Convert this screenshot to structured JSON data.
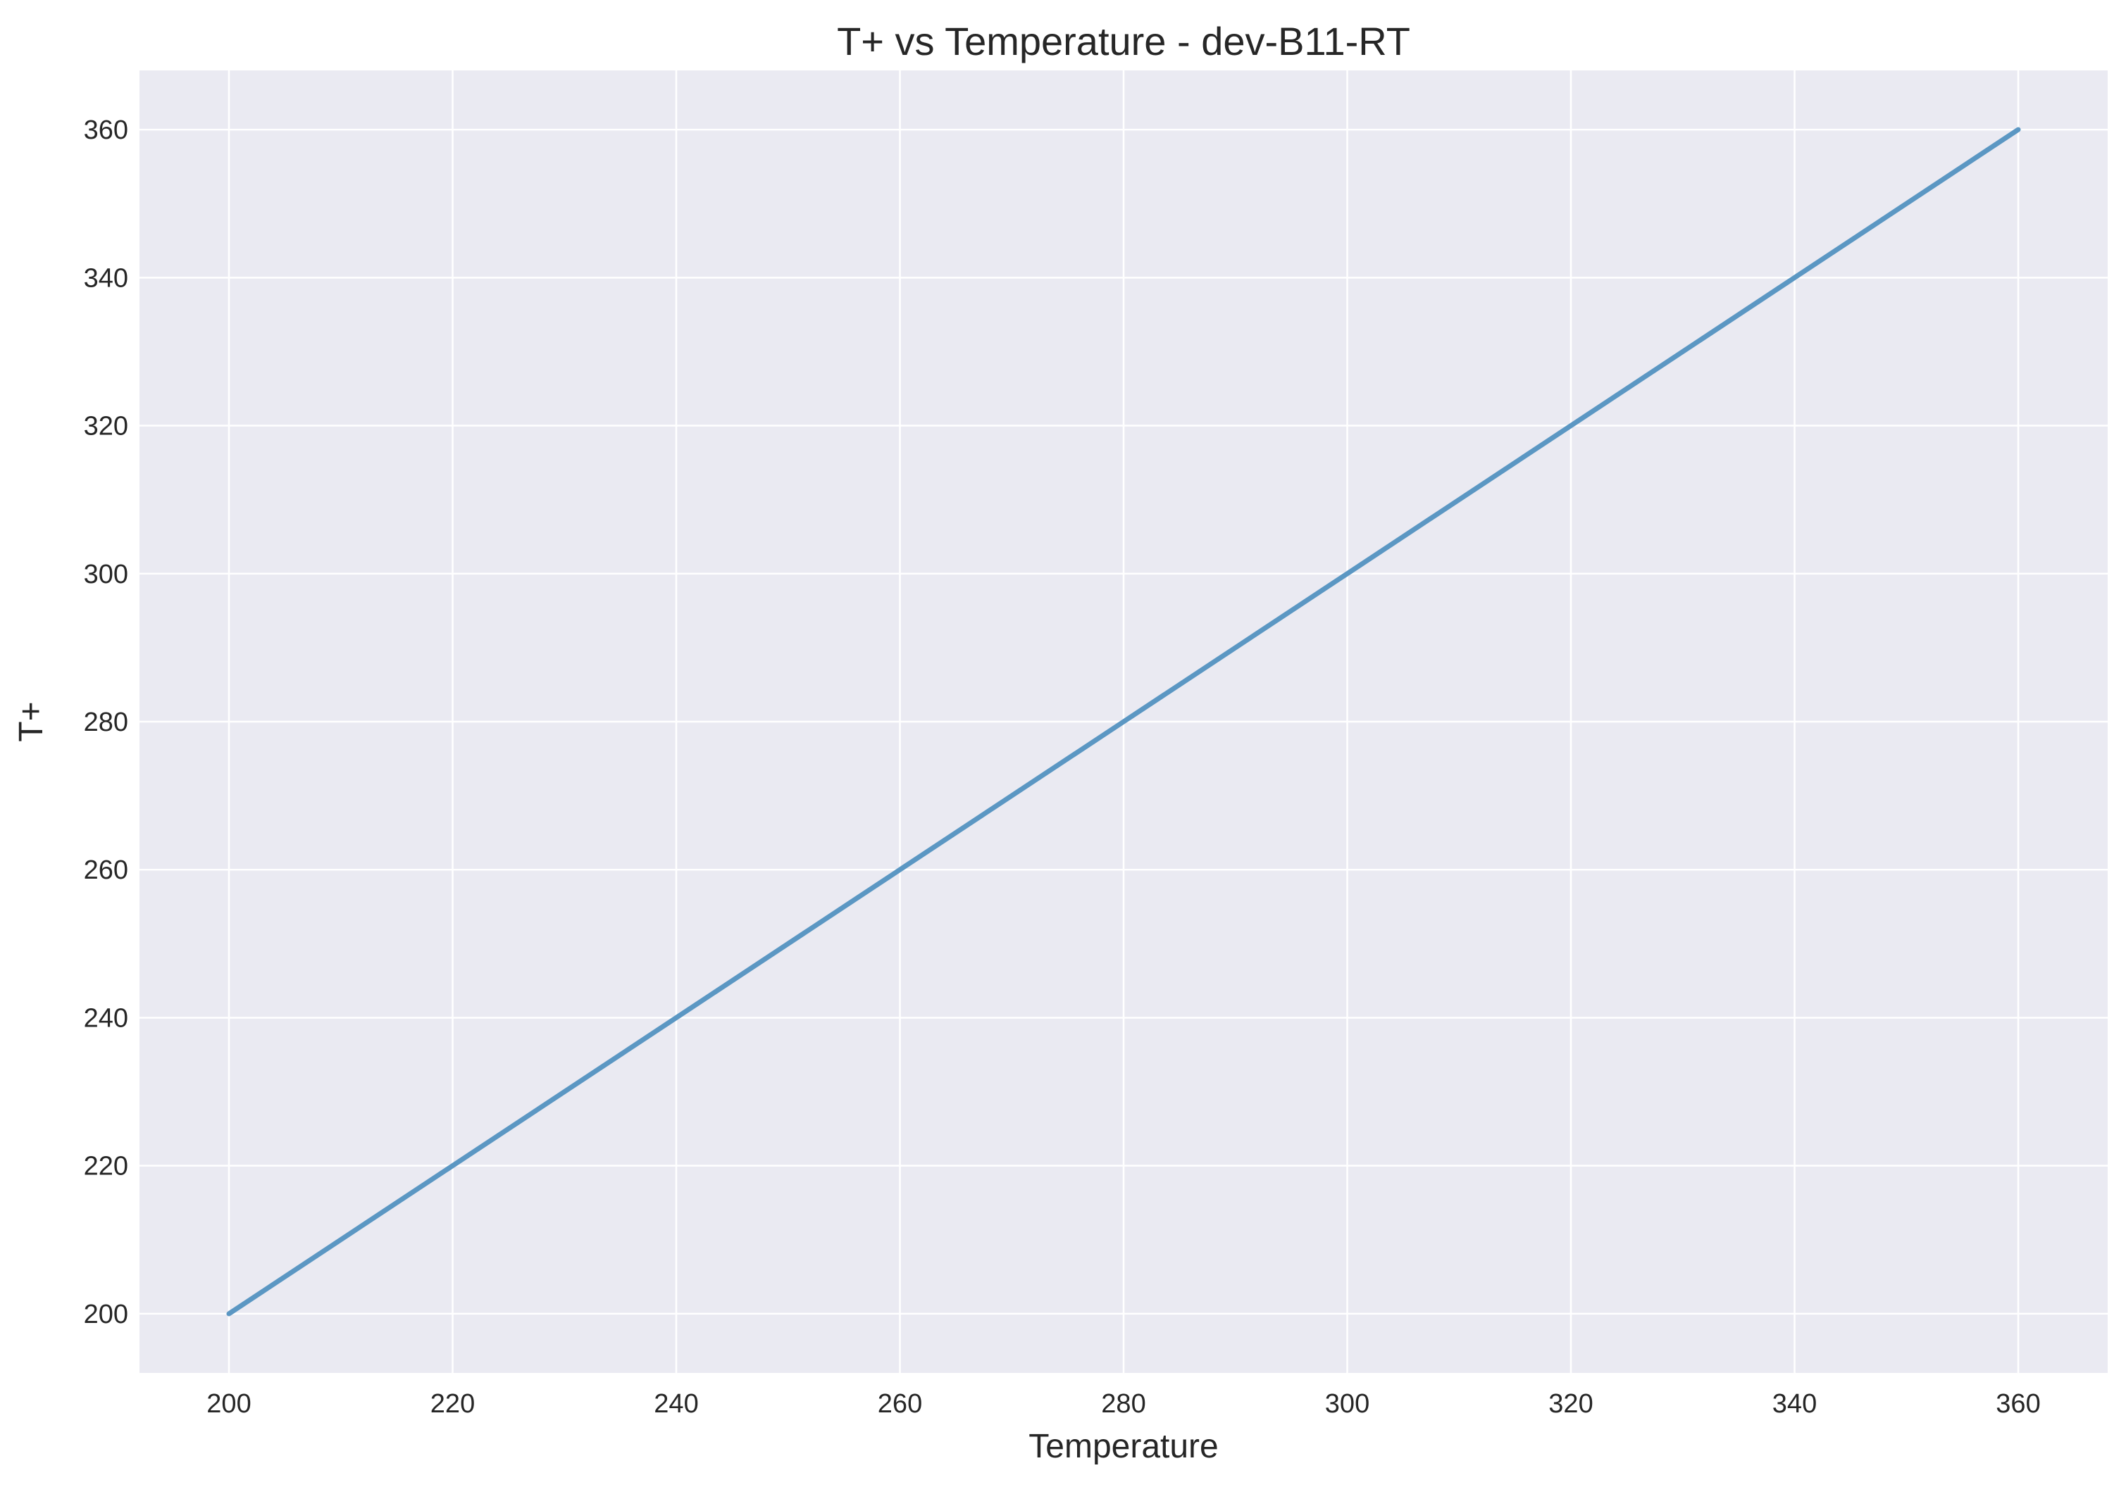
{
  "chart_data": {
    "type": "line",
    "title": "T+ vs Temperature - dev-B11-RT",
    "xlabel": "Temperature",
    "ylabel": "T+",
    "xlim": [
      192,
      368
    ],
    "ylim": [
      192,
      368
    ],
    "x_ticks": [
      200,
      220,
      240,
      260,
      280,
      300,
      320,
      340,
      360
    ],
    "y_ticks": [
      200,
      220,
      240,
      260,
      280,
      300,
      320,
      340,
      360
    ],
    "grid": true,
    "legend": "none",
    "series": [
      {
        "x": [
          200,
          220,
          240,
          260,
          280,
          300,
          320,
          340,
          360
        ],
        "y": [
          200,
          220,
          240,
          260,
          280,
          300,
          320,
          340,
          360
        ],
        "color": "#5b97c3"
      }
    ],
    "colors": {
      "background": "#eaeaf2",
      "grid": "#ffffff",
      "text": "#262626"
    }
  }
}
